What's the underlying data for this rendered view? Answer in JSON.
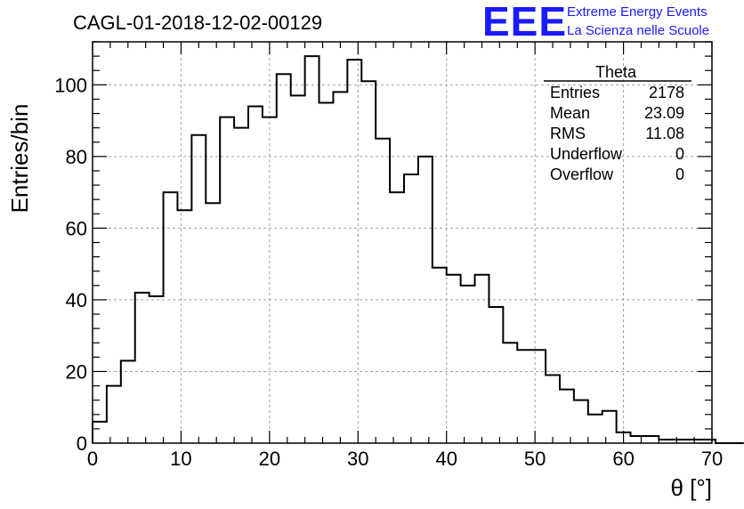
{
  "header": {
    "title": "CAGL-01-2018-12-02-00129",
    "logo_text": "EEE",
    "logo_line1": "Extreme Energy Events",
    "logo_line2": "La Scienza nelle Scuole",
    "logo_color": "#1a1aff"
  },
  "stats_box": {
    "name": "Theta",
    "rows": [
      {
        "label": "Entries",
        "value": "2178"
      },
      {
        "label": "Mean",
        "value": "23.09"
      },
      {
        "label": "RMS",
        "value": "11.08"
      },
      {
        "label": "Underflow",
        "value": "0"
      },
      {
        "label": "Overflow",
        "value": "0"
      }
    ]
  },
  "chart_data": {
    "type": "bar",
    "style": "step-histogram",
    "xlabel": "θ [°]",
    "ylabel": "Entries/bin",
    "xlim": [
      0,
      70
    ],
    "ylim": [
      0,
      112
    ],
    "bin_width": 1.6,
    "bin_edges_start": 0,
    "values": [
      6,
      16,
      23,
      42,
      41,
      70,
      65,
      86,
      67,
      91,
      88,
      94,
      91,
      103,
      97,
      108,
      95,
      98,
      107,
      101,
      85,
      70,
      75,
      80,
      49,
      47,
      44,
      47,
      38,
      28,
      26,
      26,
      19,
      15,
      12,
      8,
      9,
      3,
      2,
      2,
      1,
      1,
      1,
      1,
      0,
      0
    ],
    "xticks": [
      "0",
      "10",
      "20",
      "30",
      "40",
      "50",
      "60",
      "70"
    ],
    "xtick_values": [
      0,
      10,
      20,
      30,
      40,
      50,
      60,
      70
    ],
    "yticks": [
      "0",
      "20",
      "40",
      "60",
      "80",
      "100"
    ],
    "ytick_values": [
      0,
      20,
      40,
      60,
      80,
      100
    ],
    "grid": true,
    "line_color": "#000000"
  }
}
